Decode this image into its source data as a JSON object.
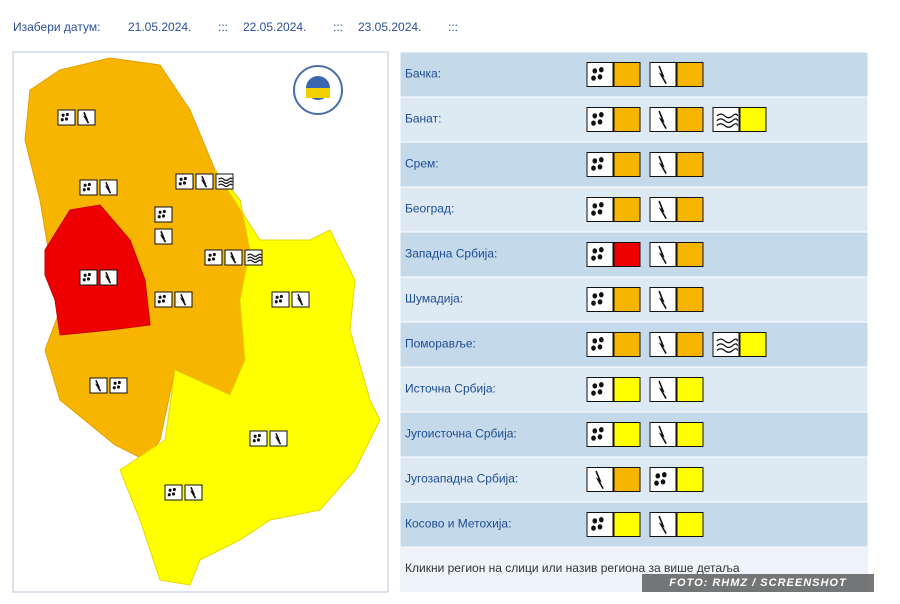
{
  "date_picker": {
    "label": "Изабери датум:",
    "dates": [
      "21.05.2024.",
      "22.05.2024.",
      "23.05.2024."
    ],
    "separator": ":::"
  },
  "regions": [
    {
      "name": "Бачка:",
      "warnings": [
        {
          "icon": "rain",
          "color": "#f7b500"
        },
        {
          "icon": "thunder",
          "color": "#f7b500"
        }
      ]
    },
    {
      "name": "Банат:",
      "warnings": [
        {
          "icon": "rain",
          "color": "#f7b500"
        },
        {
          "icon": "thunder",
          "color": "#f7b500"
        },
        {
          "icon": "wind",
          "color": "#ffff00"
        }
      ]
    },
    {
      "name": "Срем:",
      "warnings": [
        {
          "icon": "rain",
          "color": "#f7b500"
        },
        {
          "icon": "thunder",
          "color": "#f7b500"
        }
      ]
    },
    {
      "name": "Београд:",
      "warnings": [
        {
          "icon": "rain",
          "color": "#f7b500"
        },
        {
          "icon": "thunder",
          "color": "#f7b500"
        }
      ]
    },
    {
      "name": "Западна Србија:",
      "warnings": [
        {
          "icon": "rain",
          "color": "#ee0000"
        },
        {
          "icon": "thunder",
          "color": "#f7b500"
        }
      ]
    },
    {
      "name": "Шумадија:",
      "warnings": [
        {
          "icon": "rain",
          "color": "#f7b500"
        },
        {
          "icon": "thunder",
          "color": "#f7b500"
        }
      ]
    },
    {
      "name": "Поморавље:",
      "warnings": [
        {
          "icon": "rain",
          "color": "#f7b500"
        },
        {
          "icon": "thunder",
          "color": "#f7b500"
        },
        {
          "icon": "wind",
          "color": "#ffff00"
        }
      ]
    },
    {
      "name": "Источна Србија:",
      "warnings": [
        {
          "icon": "rain",
          "color": "#ffff00"
        },
        {
          "icon": "thunder",
          "color": "#ffff00"
        }
      ]
    },
    {
      "name": "Југоисточна Србија:",
      "warnings": [
        {
          "icon": "rain",
          "color": "#ffff00"
        },
        {
          "icon": "thunder",
          "color": "#ffff00"
        }
      ]
    },
    {
      "name": "Југозападна Србија:",
      "warnings": [
        {
          "icon": "thunder",
          "color": "#f7b500"
        },
        {
          "icon": "rain",
          "color": "#ffff00"
        }
      ]
    },
    {
      "name": "Косово и Метохија:",
      "warnings": [
        {
          "icon": "rain",
          "color": "#ffff00"
        },
        {
          "icon": "thunder",
          "color": "#ffff00"
        }
      ]
    }
  ],
  "footer": "Кликни регион на слици или назив региона за више детаља",
  "watermark": "FOTO: RHMZ / SCREENSHOT"
}
